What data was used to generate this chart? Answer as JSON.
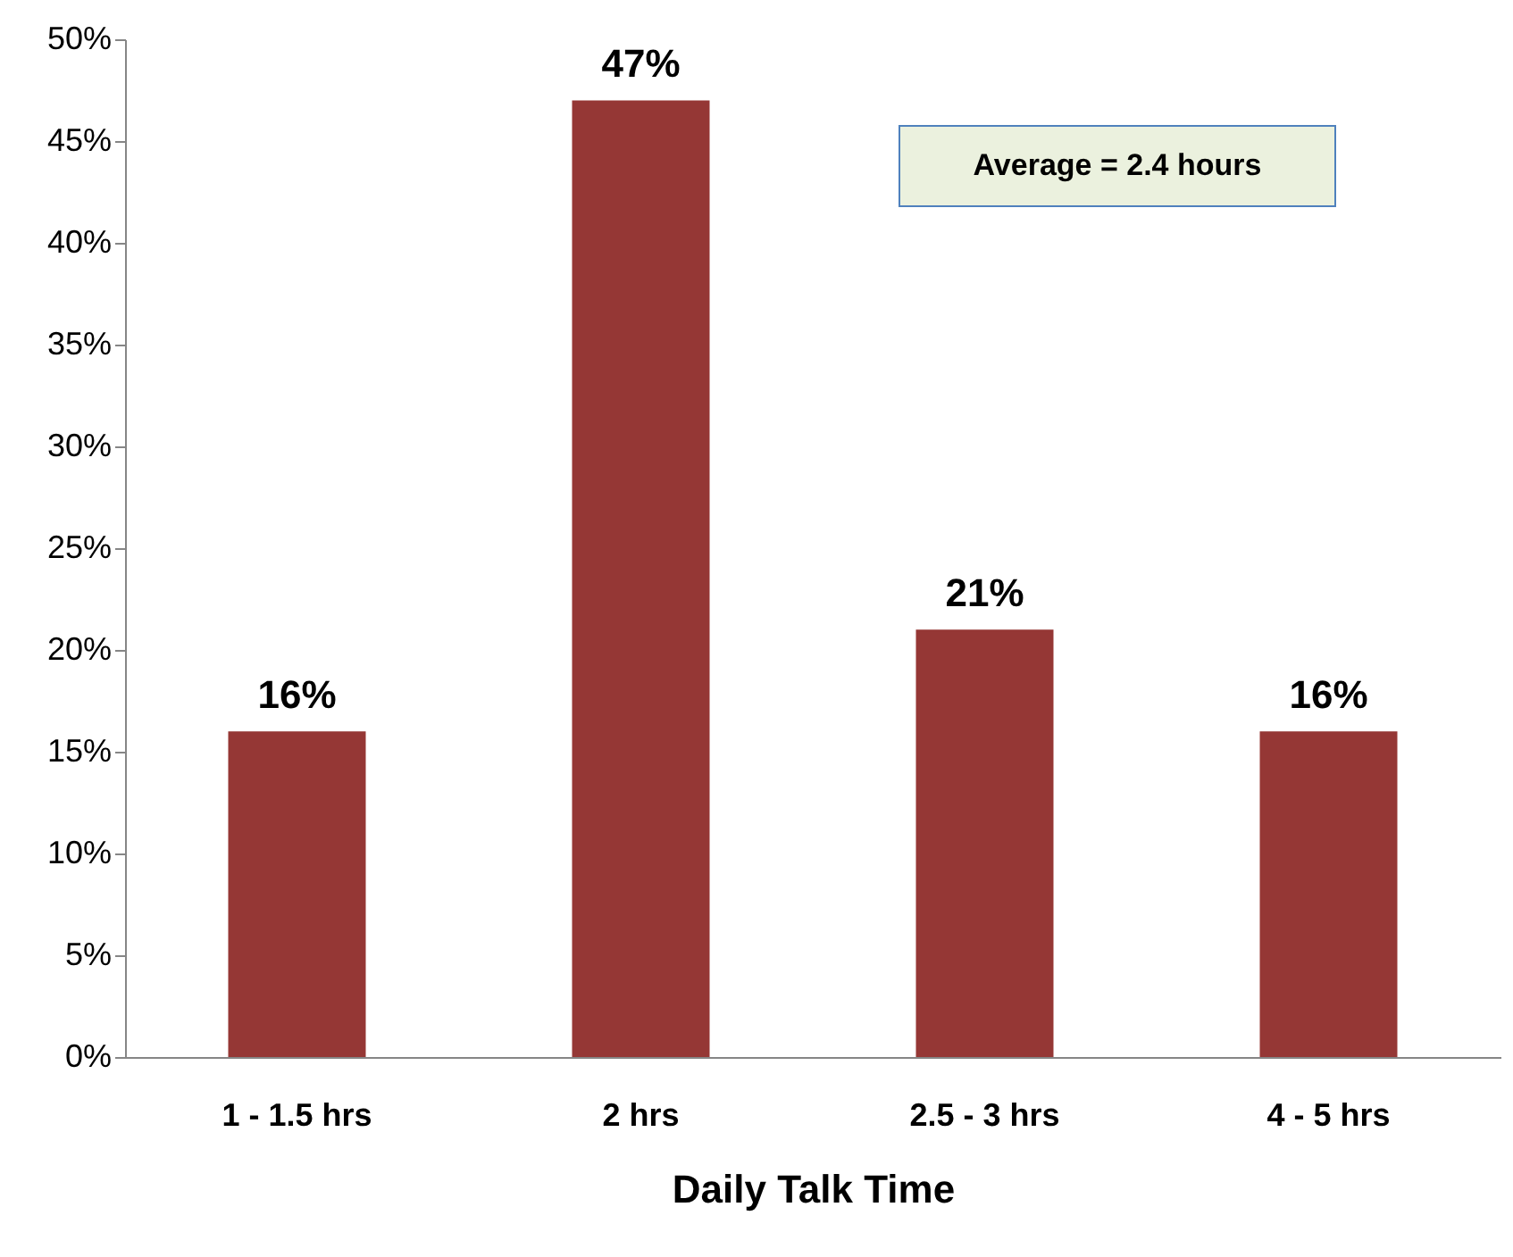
{
  "chart_data": {
    "type": "bar",
    "xlabel": "Daily Talk Time",
    "categories": [
      "1 - 1.5 hrs",
      "2 hrs",
      "2.5 - 3 hrs",
      "4 - 5 hrs"
    ],
    "values": [
      16,
      47,
      21,
      16
    ],
    "color": "#953735",
    "value_labels": [
      "16%",
      "47%",
      "21%",
      "16%"
    ],
    "ylim": [
      0,
      50
    ],
    "yticks": [
      {
        "value": 0,
        "label": "0%"
      },
      {
        "value": 5,
        "label": "5%"
      },
      {
        "value": 10,
        "label": "10%"
      },
      {
        "value": 15,
        "label": "15%"
      },
      {
        "value": 20,
        "label": "20%"
      },
      {
        "value": 25,
        "label": "25%"
      },
      {
        "value": 30,
        "label": "30%"
      },
      {
        "value": 35,
        "label": "35%"
      },
      {
        "value": 40,
        "label": "40%"
      },
      {
        "value": 45,
        "label": "45%"
      },
      {
        "value": 50,
        "label": "50%"
      }
    ],
    "annotations": [
      "Average = 2.4 hours"
    ],
    "grid": false
  }
}
